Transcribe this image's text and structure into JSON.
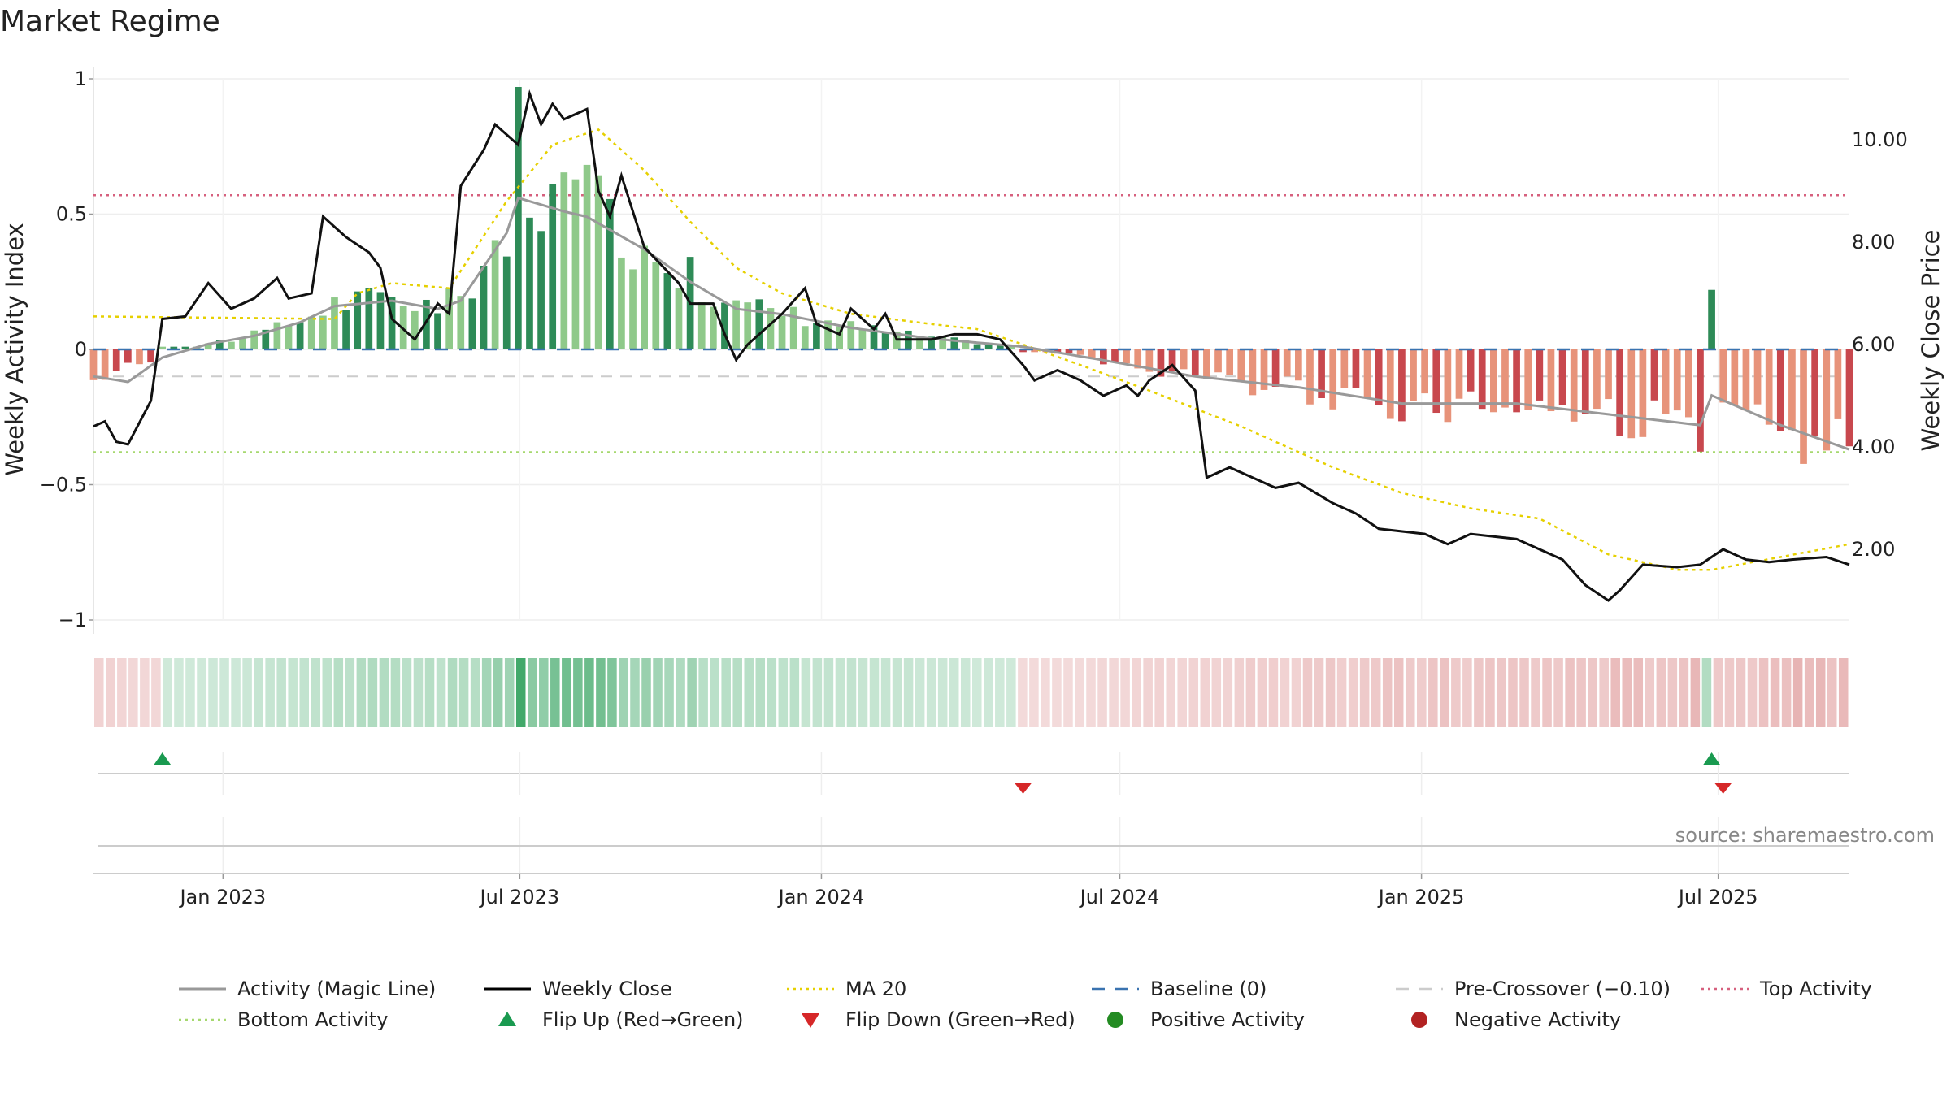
{
  "title": "Market Regime",
  "source": "source: sharemaestro.com",
  "chart_data": {
    "type": "bar",
    "x_axis": {
      "type": "date",
      "min": "2022-10-14",
      "max": "2025-09-19",
      "ticks": [
        "Jan 2023",
        "Jul 2023",
        "Jan 2024",
        "Jul 2024",
        "Jan 2025",
        "Jul 2025"
      ]
    },
    "y_left": {
      "label": "Weekly Activity Index",
      "range": [
        -1.05,
        1.05
      ],
      "ticks": [
        1,
        0.5,
        0,
        -0.5,
        -1
      ],
      "tick_labels": [
        "1",
        "0.5",
        "0",
        "−0.5",
        "−1"
      ]
    },
    "y_right": {
      "label": "Weekly Close Price",
      "range": [
        0.5,
        11.5
      ],
      "ticks": [
        10,
        8,
        6,
        4,
        2
      ],
      "tick_labels": [
        "10.00",
        "8.00",
        "6.00",
        "4.00",
        "2.00"
      ]
    },
    "grid": true,
    "reference_lines": {
      "top_activity": 0.57,
      "bottom_activity": -0.38,
      "baseline": 0,
      "pre_crossover": -0.1
    },
    "flips": {
      "up": [
        "2022-11-25",
        "2025-06-27"
      ],
      "down": [
        "2024-05-03",
        "2025-07-04"
      ]
    },
    "close_anchors": [
      [
        "2022-10-14",
        4.4
      ],
      [
        "2022-10-21",
        4.5
      ],
      [
        "2022-10-28",
        4.1
      ],
      [
        "2022-11-04",
        4.05
      ],
      [
        "2022-11-18",
        4.9
      ],
      [
        "2022-11-25",
        6.5
      ],
      [
        "2022-12-09",
        6.55
      ],
      [
        "2022-12-23",
        7.2
      ],
      [
        "2023-01-06",
        6.7
      ],
      [
        "2023-01-20",
        6.9
      ],
      [
        "2023-02-03",
        7.3
      ],
      [
        "2023-02-10",
        6.9
      ],
      [
        "2023-02-24",
        7.0
      ],
      [
        "2023-03-03",
        8.5
      ],
      [
        "2023-03-17",
        8.1
      ],
      [
        "2023-03-31",
        7.8
      ],
      [
        "2023-04-07",
        7.5
      ],
      [
        "2023-04-14",
        6.5
      ],
      [
        "2023-04-28",
        6.1
      ],
      [
        "2023-05-12",
        6.8
      ],
      [
        "2023-05-19",
        6.6
      ],
      [
        "2023-05-26",
        9.1
      ],
      [
        "2023-06-09",
        9.8
      ],
      [
        "2023-06-16",
        10.3
      ],
      [
        "2023-06-30",
        9.9
      ],
      [
        "2023-07-07",
        10.9
      ],
      [
        "2023-07-14",
        10.3
      ],
      [
        "2023-07-21",
        10.7
      ],
      [
        "2023-07-28",
        10.4
      ],
      [
        "2023-08-11",
        10.6
      ],
      [
        "2023-08-18",
        9.0
      ],
      [
        "2023-08-25",
        8.5
      ],
      [
        "2023-09-01",
        9.3
      ],
      [
        "2023-09-15",
        7.9
      ],
      [
        "2023-10-06",
        7.2
      ],
      [
        "2023-10-13",
        6.8
      ],
      [
        "2023-10-27",
        6.8
      ],
      [
        "2023-11-03",
        6.2
      ],
      [
        "2023-11-10",
        5.7
      ],
      [
        "2023-11-17",
        6.0
      ],
      [
        "2023-12-08",
        6.6
      ],
      [
        "2023-12-22",
        7.1
      ],
      [
        "2023-12-29",
        6.4
      ],
      [
        "2024-01-12",
        6.2
      ],
      [
        "2024-01-19",
        6.7
      ],
      [
        "2024-02-02",
        6.3
      ],
      [
        "2024-02-09",
        6.6
      ],
      [
        "2024-02-16",
        6.1
      ],
      [
        "2024-03-08",
        6.1
      ],
      [
        "2024-03-22",
        6.2
      ],
      [
        "2024-04-05",
        6.2
      ],
      [
        "2024-04-19",
        6.1
      ],
      [
        "2024-05-03",
        5.6
      ],
      [
        "2024-05-10",
        5.3
      ],
      [
        "2024-05-17",
        5.4
      ],
      [
        "2024-05-24",
        5.5
      ],
      [
        "2024-06-07",
        5.3
      ],
      [
        "2024-06-21",
        5.0
      ],
      [
        "2024-07-05",
        5.2
      ],
      [
        "2024-07-12",
        5.0
      ],
      [
        "2024-07-19",
        5.3
      ],
      [
        "2024-08-02",
        5.6
      ],
      [
        "2024-08-16",
        5.1
      ],
      [
        "2024-08-23",
        3.4
      ],
      [
        "2024-09-06",
        3.6
      ],
      [
        "2024-09-13",
        3.5
      ],
      [
        "2024-10-04",
        3.2
      ],
      [
        "2024-10-18",
        3.3
      ],
      [
        "2024-11-08",
        2.9
      ],
      [
        "2024-11-22",
        2.7
      ],
      [
        "2024-12-06",
        2.4
      ],
      [
        "2025-01-03",
        2.3
      ],
      [
        "2025-01-17",
        2.1
      ],
      [
        "2025-01-31",
        2.3
      ],
      [
        "2025-02-28",
        2.2
      ],
      [
        "2025-03-14",
        2.0
      ],
      [
        "2025-03-28",
        1.8
      ],
      [
        "2025-04-11",
        1.3
      ],
      [
        "2025-04-25",
        1.0
      ],
      [
        "2025-05-02",
        1.2
      ],
      [
        "2025-05-16",
        1.7
      ],
      [
        "2025-06-06",
        1.65
      ],
      [
        "2025-06-20",
        1.7
      ],
      [
        "2025-07-04",
        2.0
      ],
      [
        "2025-07-18",
        1.8
      ],
      [
        "2025-08-01",
        1.75
      ],
      [
        "2025-08-15",
        1.8
      ],
      [
        "2025-09-05",
        1.85
      ],
      [
        "2025-09-19",
        1.7
      ]
    ],
    "activity_anchors": [
      [
        "2022-10-14",
        -0.1
      ],
      [
        "2022-11-04",
        -0.12
      ],
      [
        "2022-11-25",
        -0.03
      ],
      [
        "2022-12-23",
        0.02
      ],
      [
        "2023-01-20",
        0.05
      ],
      [
        "2023-02-17",
        0.1
      ],
      [
        "2023-03-10",
        0.16
      ],
      [
        "2023-04-14",
        0.18
      ],
      [
        "2023-05-12",
        0.15
      ],
      [
        "2023-05-26",
        0.18
      ],
      [
        "2023-06-23",
        0.43
      ],
      [
        "2023-06-30",
        0.56
      ],
      [
        "2023-07-28",
        0.51
      ],
      [
        "2023-08-11",
        0.49
      ],
      [
        "2023-09-15",
        0.37
      ],
      [
        "2023-10-13",
        0.25
      ],
      [
        "2023-11-10",
        0.15
      ],
      [
        "2023-12-08",
        0.13
      ],
      [
        "2024-01-19",
        0.08
      ],
      [
        "2024-03-08",
        0.04
      ],
      [
        "2024-05-03",
        0.01
      ],
      [
        "2024-06-21",
        -0.04
      ],
      [
        "2024-08-16",
        -0.1
      ],
      [
        "2024-10-18",
        -0.14
      ],
      [
        "2024-12-20",
        -0.2
      ],
      [
        "2025-02-28",
        -0.2
      ],
      [
        "2025-04-25",
        -0.24
      ],
      [
        "2025-06-20",
        -0.28
      ],
      [
        "2025-06-27",
        -0.17
      ],
      [
        "2025-08-08",
        -0.28
      ],
      [
        "2025-09-19",
        -0.37
      ]
    ],
    "ma20_anchors": [
      [
        "2022-10-14",
        6.55
      ],
      [
        "2023-03-10",
        6.5
      ],
      [
        "2023-03-24",
        7.0
      ],
      [
        "2023-04-14",
        7.2
      ],
      [
        "2023-05-19",
        7.1
      ],
      [
        "2023-06-23",
        8.8
      ],
      [
        "2023-07-21",
        9.9
      ],
      [
        "2023-08-18",
        10.2
      ],
      [
        "2023-09-15",
        9.4
      ],
      [
        "2023-10-13",
        8.4
      ],
      [
        "2023-11-10",
        7.5
      ],
      [
        "2023-12-08",
        7.0
      ],
      [
        "2024-01-19",
        6.6
      ],
      [
        "2024-03-08",
        6.4
      ],
      [
        "2024-04-05",
        6.3
      ],
      [
        "2024-05-03",
        6.0
      ],
      [
        "2024-06-07",
        5.6
      ],
      [
        "2024-07-19",
        5.1
      ],
      [
        "2024-09-13",
        4.4
      ],
      [
        "2024-11-08",
        3.6
      ],
      [
        "2024-12-20",
        3.1
      ],
      [
        "2025-01-31",
        2.8
      ],
      [
        "2025-03-14",
        2.6
      ],
      [
        "2025-04-25",
        1.9
      ],
      [
        "2025-06-06",
        1.6
      ],
      [
        "2025-06-27",
        1.6
      ],
      [
        "2025-09-19",
        2.1
      ]
    ],
    "legend": [
      {
        "label": "Activity (Magic Line)",
        "marker": "line",
        "color": "#999999"
      },
      {
        "label": "Weekly Close",
        "marker": "line",
        "color": "#000000"
      },
      {
        "label": "MA 20",
        "marker": "dotted",
        "color": "#e6d000"
      },
      {
        "label": "Baseline (0)",
        "marker": "dashed",
        "color": "#3a73b0"
      },
      {
        "label": "Pre-Crossover (−0.10)",
        "marker": "dashed",
        "color": "#cccccc"
      },
      {
        "label": "Top Activity",
        "marker": "dotted",
        "color": "#d6607e"
      },
      {
        "label": "Bottom Activity",
        "marker": "dotted",
        "color": "#a6d86f"
      },
      {
        "label": "Flip Up (Red→Green)",
        "marker": "triangle-up",
        "color": "#1a9a50"
      },
      {
        "label": "Flip Down (Green→Red)",
        "marker": "triangle-down",
        "color": "#d62728"
      },
      {
        "label": "Positive Activity",
        "marker": "circle",
        "color": "#238b22"
      },
      {
        "label": "Negative Activity",
        "marker": "circle",
        "color": "#b22222"
      }
    ],
    "colors": {
      "pos_dark": "#2e8b57",
      "pos_light": "#8fc98a",
      "neg_dark": "#c8484e",
      "neg_light": "#e7937a"
    }
  }
}
